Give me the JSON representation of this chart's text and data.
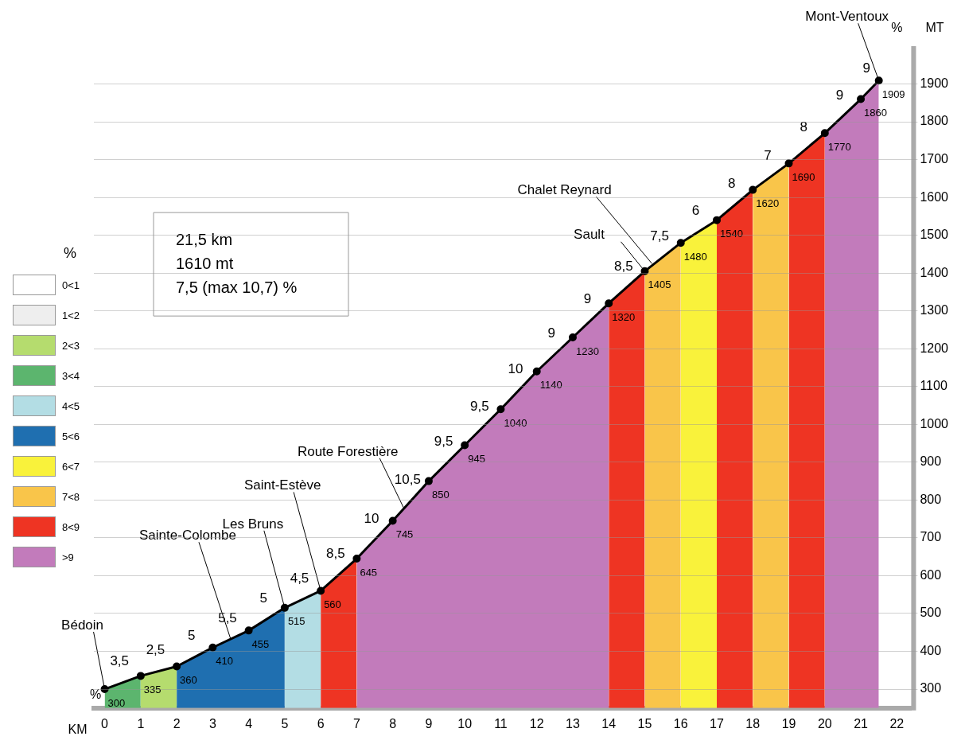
{
  "chart_data": {
    "type": "area",
    "xlabel": "KM",
    "ylabel": "MT",
    "legend_title": "%",
    "legend": "left",
    "grid": "y",
    "x": [
      0,
      1,
      2,
      3,
      4,
      5,
      6,
      7,
      8,
      9,
      10,
      11,
      12,
      13,
      14,
      15,
      16,
      17,
      18,
      19,
      20,
      21,
      21.5
    ],
    "xlim": [
      -0.3,
      22.4
    ],
    "xticks": [
      0,
      1,
      2,
      3,
      4,
      5,
      6,
      7,
      8,
      9,
      10,
      11,
      12,
      13,
      14,
      15,
      16,
      17,
      18,
      19,
      20,
      21,
      22
    ],
    "ylim": [
      250,
      2000
    ],
    "yticks": [
      300,
      400,
      500,
      600,
      700,
      800,
      900,
      1000,
      1100,
      1200,
      1300,
      1400,
      1500,
      1600,
      1700,
      1800,
      1900
    ],
    "series": [
      {
        "name": "0<1",
        "color": "#ffffff",
        "values": [
          null,
          null,
          null,
          null,
          null,
          null,
          null,
          null,
          null,
          null,
          null,
          null,
          null,
          null,
          null,
          null,
          null,
          null,
          null,
          null,
          null,
          null,
          null
        ]
      },
      {
        "name": "1<2",
        "color": "#eeeeee",
        "values": [
          null,
          null,
          null,
          null,
          null,
          null,
          null,
          null,
          null,
          null,
          null,
          null,
          null,
          null,
          null,
          null,
          null,
          null,
          null,
          null,
          null,
          null,
          null
        ]
      },
      {
        "name": "2<3",
        "color": "#b5dc6e",
        "x": [
          1,
          2
        ],
        "values": [
          335,
          360
        ]
      },
      {
        "name": "3<4",
        "color": "#5cb56e",
        "x": [
          0,
          1
        ],
        "values": [
          300,
          335
        ]
      },
      {
        "name": "4<5",
        "color": "#b3dde4",
        "x": [
          5,
          6
        ],
        "values": [
          515,
          560
        ]
      },
      {
        "name": "5<6",
        "color": "#1f6fb0",
        "x": [
          2,
          3,
          4,
          5
        ],
        "values": [
          360,
          410,
          455,
          515
        ]
      },
      {
        "name": "6<7",
        "color": "#f9f23b",
        "x": [
          16,
          17
        ],
        "values": [
          1480,
          1540
        ]
      },
      {
        "name": "7<8",
        "color": "#f9c54a",
        "x": [
          15,
          16,
          17,
          18,
          19
        ],
        "values": [
          1405,
          1480,
          null,
          1620,
          1690
        ]
      },
      {
        "name": "8<9",
        "color": "#ee3423",
        "x": [
          6,
          7,
          10,
          14,
          15,
          16,
          17,
          18,
          18.5,
          19,
          20
        ],
        "values": [
          560,
          645,
          null,
          1320,
          1405,
          null,
          1540,
          1620,
          null,
          1690,
          1770
        ]
      },
      {
        "name": ">9",
        "color": "#c27bbb",
        "x": [
          7,
          8,
          9,
          10,
          11,
          12,
          13,
          14,
          17,
          20,
          21,
          21.5
        ],
        "values": [
          645,
          745,
          850,
          945,
          1040,
          1140,
          1230,
          1320,
          null,
          1770,
          1860,
          1909
        ]
      },
      {
        "type": "line",
        "color": "#000000",
        "marker": "circle",
        "values": [
          300,
          335,
          360,
          410,
          455,
          515,
          560,
          645,
          745,
          850,
          945,
          1040,
          1140,
          1230,
          1320,
          1405,
          1480,
          1540,
          1620,
          1690,
          1770,
          1860,
          1909
        ],
        "value_labels": [
          "300",
          "335",
          "360",
          "410",
          "455",
          "515",
          "560",
          "645",
          "745",
          "850",
          "945",
          "1040",
          "1140",
          "1230",
          "1320",
          "1405",
          "1480",
          "1540",
          "1620",
          "1690",
          "1770",
          "1860",
          "1909"
        ]
      }
    ],
    "annotations": [
      "21,5 km",
      "1610 mt",
      "7,5 (max 10,7) %",
      "%",
      "%",
      {
        "text": "3,5",
        "x": 0.5,
        "y": 318
      },
      {
        "text": "2,5",
        "x": 1.5,
        "y": 348
      },
      {
        "text": "5",
        "x": 2.5,
        "y": 385
      },
      {
        "text": "5,5",
        "x": 3.5,
        "y": 432
      },
      {
        "text": "5",
        "x": 4.5,
        "y": 485
      },
      {
        "text": "4,5",
        "x": 5.5,
        "y": 538
      },
      {
        "text": "8,5",
        "x": 6.5,
        "y": 602
      },
      {
        "text": "10",
        "x": 7.5,
        "y": 695
      },
      {
        "text": "10,5",
        "x": 8.5,
        "y": 798
      },
      {
        "text": "9,5",
        "x": 9.5,
        "y": 898
      },
      {
        "text": "9,5",
        "x": 10.5,
        "y": 992
      },
      {
        "text": "10",
        "x": 11.5,
        "y": 1090
      },
      {
        "text": "9",
        "x": 12.5,
        "y": 1185
      },
      {
        "text": "9",
        "x": 13.5,
        "y": 1275
      },
      {
        "text": "8,5",
        "x": 14.5,
        "y": 1362
      },
      {
        "text": "7,5",
        "x": 15.5,
        "y": 1442
      },
      {
        "text": "6",
        "x": 16.5,
        "y": 1510
      },
      {
        "text": "8",
        "x": 17.5,
        "y": 1580
      },
      {
        "text": "7",
        "x": 18.5,
        "y": 1655
      },
      {
        "text": "8",
        "x": 19.5,
        "y": 1730
      },
      {
        "text": "9",
        "x": 20.5,
        "y": 1815
      },
      {
        "text": "9",
        "x": 21.25,
        "y": 1885
      },
      {
        "text": "Bédoin",
        "x": 0,
        "y": 300
      },
      {
        "text": "Sainte-Colombe",
        "x": 3.5,
        "y": 432
      },
      {
        "text": "Les Bruns",
        "x": 5,
        "y": 515
      },
      {
        "text": "Saint-Estève",
        "x": 6,
        "y": 560
      },
      {
        "text": "Route Forestière",
        "x": 8.3,
        "y": 780
      },
      {
        "text": "Sault",
        "x": 15,
        "y": 1405
      },
      {
        "text": "Chalet Reynard",
        "x": 15.2,
        "y": 1425
      },
      {
        "text": "Mont-Ventoux",
        "x": 21.5,
        "y": 1909
      }
    ]
  }
}
